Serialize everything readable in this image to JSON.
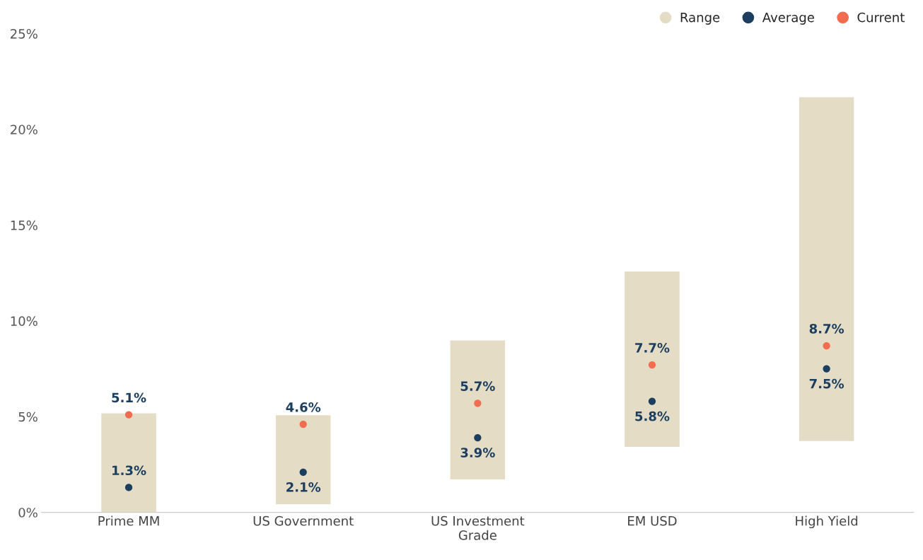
{
  "chart_data": {
    "type": "bar",
    "categories": [
      "Prime MM",
      "US Government",
      "US Investment Grade",
      "EM USD",
      "High Yield"
    ],
    "series": [
      {
        "name": "Range",
        "color": "#e4dcc5",
        "base": [
          0,
          0.4,
          1.7,
          3.4,
          3.7
        ],
        "values": [
          5.2,
          4.7,
          7.3,
          9.2,
          18.0
        ]
      },
      {
        "name": "Average",
        "type": "scatter",
        "color": "#1c3f60",
        "values": [
          1.3,
          2.1,
          3.9,
          5.8,
          7.5
        ],
        "value_labels": [
          "1.3%",
          "2.1%",
          "3.9%",
          "5.8%",
          "7.5%"
        ]
      },
      {
        "name": "Current",
        "type": "scatter",
        "color": "#f26c4f",
        "values": [
          5.1,
          4.6,
          5.7,
          7.7,
          8.7
        ],
        "value_labels": [
          "5.1%",
          "4.6%",
          "5.7%",
          "7.7%",
          "8.7%"
        ]
      }
    ],
    "ylim": [
      0,
      25
    ],
    "yticks": [
      {
        "value": 0,
        "label": "0%"
      },
      {
        "value": 5,
        "label": "5%"
      },
      {
        "value": 10,
        "label": "10%"
      },
      {
        "value": 15,
        "label": "15%"
      },
      {
        "value": 20,
        "label": "20%"
      },
      {
        "value": 25,
        "label": "25%"
      }
    ],
    "grid": false,
    "legend": "top right",
    "marker": "circle"
  }
}
